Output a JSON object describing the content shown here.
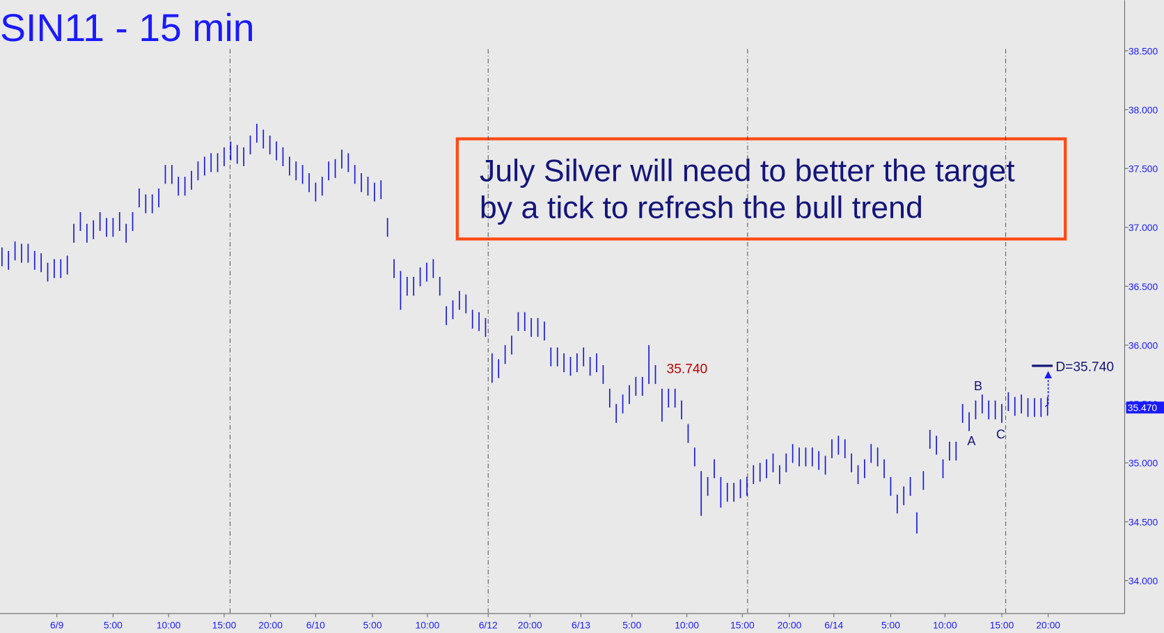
{
  "chart_data": {
    "type": "hlbar",
    "title": "SIN11 - 15 min",
    "color": "#1a1ad9",
    "x": [
      0,
      1,
      2,
      3,
      4,
      5,
      6,
      7,
      8,
      9,
      10,
      11,
      12,
      13,
      14,
      15,
      16,
      17,
      18,
      19,
      20,
      21,
      22,
      23,
      24,
      25,
      26,
      27,
      28,
      29,
      30,
      31,
      32,
      33,
      34,
      35,
      36,
      37,
      38,
      39,
      40,
      41,
      42,
      43,
      44,
      45,
      46,
      47,
      48,
      49,
      50,
      51,
      52,
      53,
      54,
      55,
      56,
      57,
      58,
      59,
      60,
      61,
      62,
      63,
      64,
      65,
      66,
      67,
      68,
      69,
      70,
      71,
      72,
      73,
      74,
      75,
      76,
      77,
      78,
      79,
      80,
      81,
      82,
      83,
      84,
      85,
      86,
      87,
      88,
      89,
      90,
      91,
      92,
      93,
      94,
      95,
      96,
      97,
      98,
      99,
      100,
      101,
      102,
      103,
      104,
      105,
      106,
      107,
      108,
      109,
      110,
      111,
      112,
      113,
      114,
      115,
      116,
      117,
      118,
      119,
      120,
      121,
      122,
      123,
      124,
      125,
      126,
      127,
      128,
      129,
      130,
      131,
      132,
      133,
      134,
      135,
      136,
      137,
      138,
      139,
      140,
      141,
      142,
      143,
      144,
      145,
      146,
      147,
      148,
      149,
      150,
      151,
      152,
      153,
      154,
      155,
      156,
      157,
      158,
      159,
      160
    ],
    "high": [
      36.83,
      36.8,
      36.88,
      36.86,
      36.86,
      36.8,
      36.78,
      36.7,
      36.73,
      36.73,
      36.76,
      37.03,
      37.13,
      37.03,
      37.06,
      37.13,
      37.08,
      37.08,
      37.13,
      37.03,
      37.13,
      37.33,
      37.28,
      37.28,
      37.33,
      37.53,
      37.53,
      37.43,
      37.43,
      37.48,
      37.56,
      37.6,
      37.63,
      37.63,
      37.68,
      37.73,
      37.7,
      37.68,
      37.78,
      37.88,
      37.83,
      37.78,
      37.73,
      37.68,
      37.6,
      37.56,
      37.53,
      37.46,
      37.38,
      37.43,
      37.56,
      37.58,
      37.66,
      37.63,
      37.53,
      37.46,
      37.43,
      37.38,
      37.4,
      37.08,
      36.73,
      36.63,
      36.58,
      36.58,
      36.66,
      36.7,
      36.73,
      36.58,
      36.33,
      36.38,
      36.46,
      36.43,
      36.3,
      36.28,
      36.23,
      35.93,
      35.88,
      36.0,
      36.08,
      36.28,
      36.28,
      36.23,
      36.23,
      36.2,
      35.98,
      35.98,
      35.93,
      35.9,
      35.93,
      35.98,
      35.9,
      35.93,
      35.83,
      35.63,
      35.5,
      35.58,
      35.66,
      35.73,
      35.73,
      36.0,
      35.83,
      35.63,
      35.63,
      35.63,
      35.53,
      35.33,
      35.13,
      34.93,
      34.88,
      35.03,
      34.88,
      34.83,
      34.83,
      34.86,
      34.88,
      34.98,
      35.0,
      35.03,
      35.08,
      34.98,
      35.08,
      35.16,
      35.13,
      35.13,
      35.13,
      35.1,
      35.06,
      35.2,
      35.23,
      35.2,
      35.08,
      34.98,
      35.03,
      35.16,
      35.13,
      35.03,
      34.88,
      34.73,
      34.8,
      34.88,
      34.58,
      34.93,
      35.28,
      35.23,
      35.03,
      35.18,
      35.18,
      35.5,
      35.43,
      35.53,
      35.58,
      35.53,
      35.53,
      35.5,
      35.6,
      35.56,
      35.58,
      35.55,
      35.55,
      35.55,
      35.56
    ],
    "low": [
      36.67,
      36.64,
      36.72,
      36.7,
      36.7,
      36.64,
      36.62,
      36.54,
      36.57,
      36.57,
      36.6,
      36.87,
      36.97,
      36.87,
      36.9,
      36.97,
      36.92,
      36.92,
      36.97,
      36.87,
      36.97,
      37.17,
      37.12,
      37.12,
      37.17,
      37.37,
      37.37,
      37.27,
      37.27,
      37.32,
      37.4,
      37.44,
      37.47,
      37.47,
      37.52,
      37.57,
      37.54,
      37.52,
      37.62,
      37.72,
      37.67,
      37.62,
      37.57,
      37.52,
      37.44,
      37.4,
      37.37,
      37.3,
      37.22,
      37.27,
      37.4,
      37.42,
      37.5,
      37.47,
      37.37,
      37.3,
      37.27,
      37.22,
      37.24,
      36.92,
      36.57,
      36.3,
      36.42,
      36.42,
      36.5,
      36.54,
      36.57,
      36.42,
      36.17,
      36.22,
      36.3,
      36.27,
      36.14,
      36.12,
      36.07,
      35.68,
      35.72,
      35.84,
      35.92,
      36.12,
      36.12,
      36.07,
      36.07,
      36.04,
      35.82,
      35.82,
      35.77,
      35.74,
      35.77,
      35.82,
      35.74,
      35.77,
      35.67,
      35.47,
      35.34,
      35.42,
      35.5,
      35.57,
      35.57,
      35.67,
      35.67,
      35.35,
      35.47,
      35.47,
      35.37,
      35.17,
      34.97,
      34.55,
      34.72,
      34.87,
      34.62,
      34.67,
      34.67,
      34.7,
      34.72,
      34.82,
      34.84,
      34.87,
      34.92,
      34.82,
      34.92,
      35.0,
      34.97,
      34.97,
      34.97,
      34.94,
      34.9,
      35.04,
      35.07,
      35.04,
      34.92,
      34.82,
      34.87,
      35.0,
      34.97,
      34.87,
      34.72,
      34.57,
      34.64,
      34.72,
      34.4,
      34.77,
      35.12,
      35.07,
      34.87,
      35.02,
      35.02,
      35.34,
      35.27,
      35.37,
      35.42,
      35.37,
      35.37,
      35.34,
      35.44,
      35.4,
      35.42,
      35.39,
      35.39,
      35.39,
      35.4
    ],
    "xlim": [
      -0.3,
      171.8
    ],
    "xticks": [
      {
        "value": 8.4,
        "label": "6/9"
      },
      {
        "value": 17,
        "label": "5:00"
      },
      {
        "value": 25.5,
        "label": "10:00"
      },
      {
        "value": 34,
        "label": "15:00"
      },
      {
        "value": 41.1,
        "label": "20:00"
      },
      {
        "value": 48,
        "label": "6/10"
      },
      {
        "value": 56.7,
        "label": "5:00"
      },
      {
        "value": 65.1,
        "label": "10:00"
      },
      {
        "value": 74.4,
        "label": "6/12"
      },
      {
        "value": 80.8,
        "label": "20:00"
      },
      {
        "value": 88.6,
        "label": "6/13"
      },
      {
        "value": 96.4,
        "label": "5:00"
      },
      {
        "value": 104.8,
        "label": "10:00"
      },
      {
        "value": 113.3,
        "label": "15:00"
      },
      {
        "value": 120.5,
        "label": "20:00"
      },
      {
        "value": 127.3,
        "label": "6/14"
      },
      {
        "value": 136,
        "label": "5:00"
      },
      {
        "value": 144.3,
        "label": "10:00"
      },
      {
        "value": 153,
        "label": "15:00"
      },
      {
        "value": 160.1,
        "label": "20:00"
      }
    ],
    "session_lines": [
      34.9,
      74.4,
      114.1,
      153.6
    ],
    "ylim": [
      33.72,
      38.93
    ],
    "yticks": [
      {
        "value": 34,
        "label": "34.000"
      },
      {
        "value": 34.5,
        "label": "34.500"
      },
      {
        "value": 35,
        "label": "35.000"
      },
      {
        "value": 35.5,
        "label": "35.500"
      },
      {
        "value": 36,
        "label": "36.000"
      },
      {
        "value": 36.5,
        "label": "36.500"
      },
      {
        "value": 37,
        "label": "37.000"
      },
      {
        "value": 37.5,
        "label": "37.500"
      },
      {
        "value": 38,
        "label": "38.000"
      },
      {
        "value": 38.5,
        "label": "38.500"
      }
    ],
    "last_price": {
      "value": 35.47,
      "label": "35.470"
    },
    "note_lines": [
      "July Silver will need to better the target",
      "by a tick to refresh the bull trend"
    ],
    "annotations": [
      "35.740",
      "A",
      "B",
      "C",
      "D=35.740"
    ]
  }
}
